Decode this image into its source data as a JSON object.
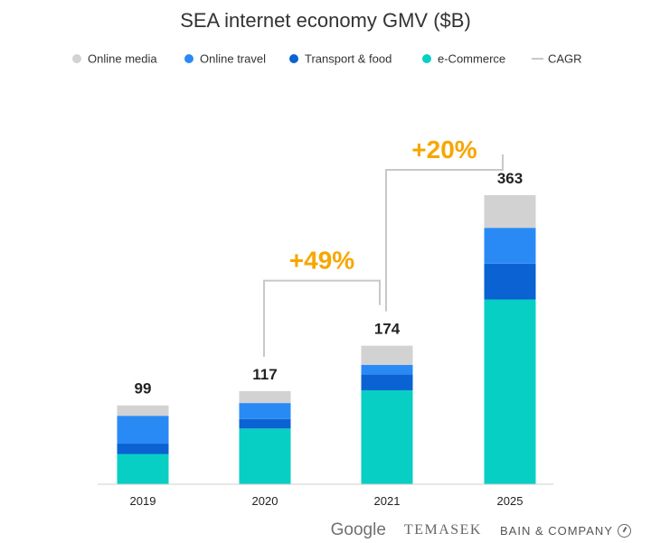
{
  "chart_data": {
    "type": "bar",
    "stacked": true,
    "title": "SEA internet economy GMV ($B)",
    "categories": [
      "2019",
      "2020",
      "2021",
      "2025"
    ],
    "series": [
      {
        "name": "e-Commerce",
        "color": "#08cfc4",
        "values": [
          38,
          70,
          118,
          232
        ]
      },
      {
        "name": "Transport & food",
        "color": "#0a62d3",
        "values": [
          13,
          12,
          20,
          45
        ]
      },
      {
        "name": "Online travel",
        "color": "#2a8af5",
        "values": [
          35,
          20,
          12,
          45
        ]
      },
      {
        "name": "Online media",
        "color": "#d2d2d2",
        "values": [
          13,
          15,
          24,
          41
        ]
      }
    ],
    "totals": [
      "99",
      "117",
      "174",
      "363"
    ],
    "legend": [
      {
        "name": "Online media",
        "color": "#d2d2d2",
        "marker": "circle"
      },
      {
        "name": "Online travel",
        "color": "#2a8af5",
        "marker": "circle"
      },
      {
        "name": "Transport & food",
        "color": "#0a62d3",
        "marker": "circle"
      },
      {
        "name": "e-Commerce",
        "color": "#08cfc4",
        "marker": "circle"
      },
      {
        "name": "CAGR",
        "color": "#c8c8c8",
        "marker": "line"
      }
    ],
    "cagr": [
      {
        "from": "2020",
        "to": "2021",
        "label": "+49%"
      },
      {
        "from": "2021",
        "to": "2025",
        "label": "+20%"
      }
    ],
    "cagr_color": "#f7a600",
    "ylim": [
      0,
      363
    ],
    "grid": false,
    "legend_position": "top"
  },
  "footer": {
    "logos": [
      "Google",
      "TEMASEK",
      "BAIN & COMPANY"
    ]
  }
}
